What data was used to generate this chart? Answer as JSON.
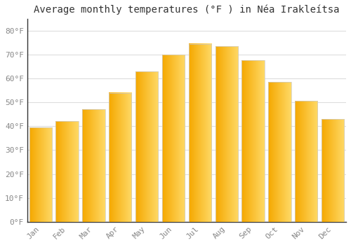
{
  "title": "Average monthly temperatures (°F ) in Néa Irakleítsa",
  "months": [
    "Jan",
    "Feb",
    "Mar",
    "Apr",
    "May",
    "Jun",
    "Jul",
    "Aug",
    "Sep",
    "Oct",
    "Nov",
    "Dec"
  ],
  "values": [
    39.5,
    42.0,
    47.0,
    54.0,
    63.0,
    70.0,
    74.5,
    73.5,
    67.5,
    58.5,
    50.5,
    43.0
  ],
  "bar_color_left": "#F5A800",
  "bar_color_right": "#FFD966",
  "bar_edge_color": "#CCCCCC",
  "background_color": "#FFFFFF",
  "grid_color": "#DDDDDD",
  "text_color": "#888888",
  "spine_color": "#333333",
  "ylim": [
    0,
    85
  ],
  "yticks": [
    0,
    10,
    20,
    30,
    40,
    50,
    60,
    70,
    80
  ],
  "ytick_labels": [
    "0°F",
    "10°F",
    "20°F",
    "30°F",
    "40°F",
    "50°F",
    "60°F",
    "70°F",
    "80°F"
  ],
  "title_fontsize": 10,
  "tick_fontsize": 8,
  "font_family": "monospace",
  "bar_width": 0.85
}
